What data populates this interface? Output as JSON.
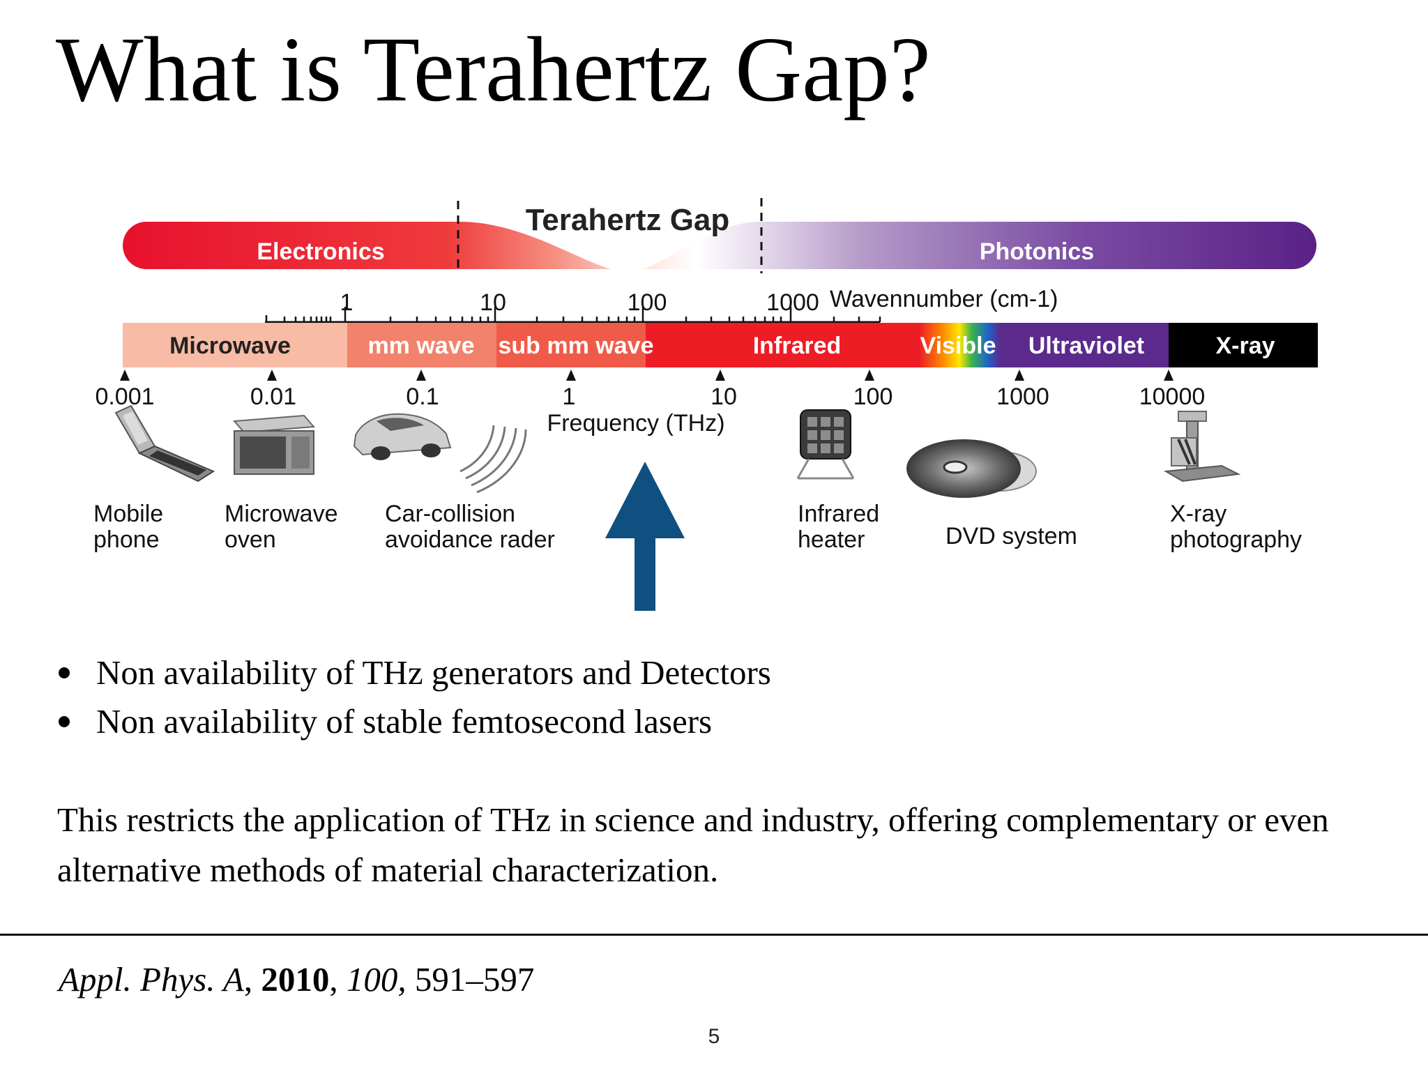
{
  "slide": {
    "title": "What is Terahertz Gap?",
    "bullets": [
      "Non availability of THz generators and Detectors",
      "Non availability of stable femtosecond lasers"
    ],
    "summary": "This restricts the application of THz in science and industry, offering complementary or even alternative methods of material characterization.",
    "citation": {
      "journal": "Appl. Phys. A",
      "sep1": ", ",
      "year": "2010",
      "sep2": ", ",
      "volume": "100,",
      "pages": " 591–597"
    },
    "page_number": "5"
  },
  "diagram": {
    "gap_label": "Terahertz Gap",
    "electronics_label": "Electronics",
    "photonics_label": "Photonics",
    "wavenumber_ticks": [
      "1",
      "10",
      "100",
      "1000"
    ],
    "wavenumber_label": "Wavennumber (cm-1)",
    "bands": [
      "Microwave",
      "mm wave",
      "sub mm wave",
      "Infrared",
      "Visible",
      "Ultraviolet",
      "X-ray"
    ],
    "frequency_ticks": [
      "0.001",
      "0.01",
      "0.1",
      "1",
      "10",
      "100",
      "1000",
      "10000"
    ],
    "frequency_label": "Frequency (THz)",
    "devices": {
      "mobile_phone": [
        "Mobile",
        "phone"
      ],
      "microwave_oven": [
        "Microwave",
        "oven"
      ],
      "car_radar": [
        "Car-collision",
        "avoidance rader"
      ],
      "infrared_heater": [
        "Infrared",
        "heater"
      ],
      "dvd_system": [
        "DVD system"
      ],
      "xray_photography": [
        "X-ray",
        "photography"
      ]
    },
    "colors": {
      "electronics_red": "#e8112d",
      "photonics_purple": "#5a2187",
      "microwave": "#f8bba5",
      "mm_wave": "#f2826c",
      "sub_mm_wave": "#f05a48",
      "infrared": "#ee1c25",
      "ultraviolet": "#5b2a8c",
      "xray": "#000000",
      "arrow": "#0f5080"
    }
  }
}
